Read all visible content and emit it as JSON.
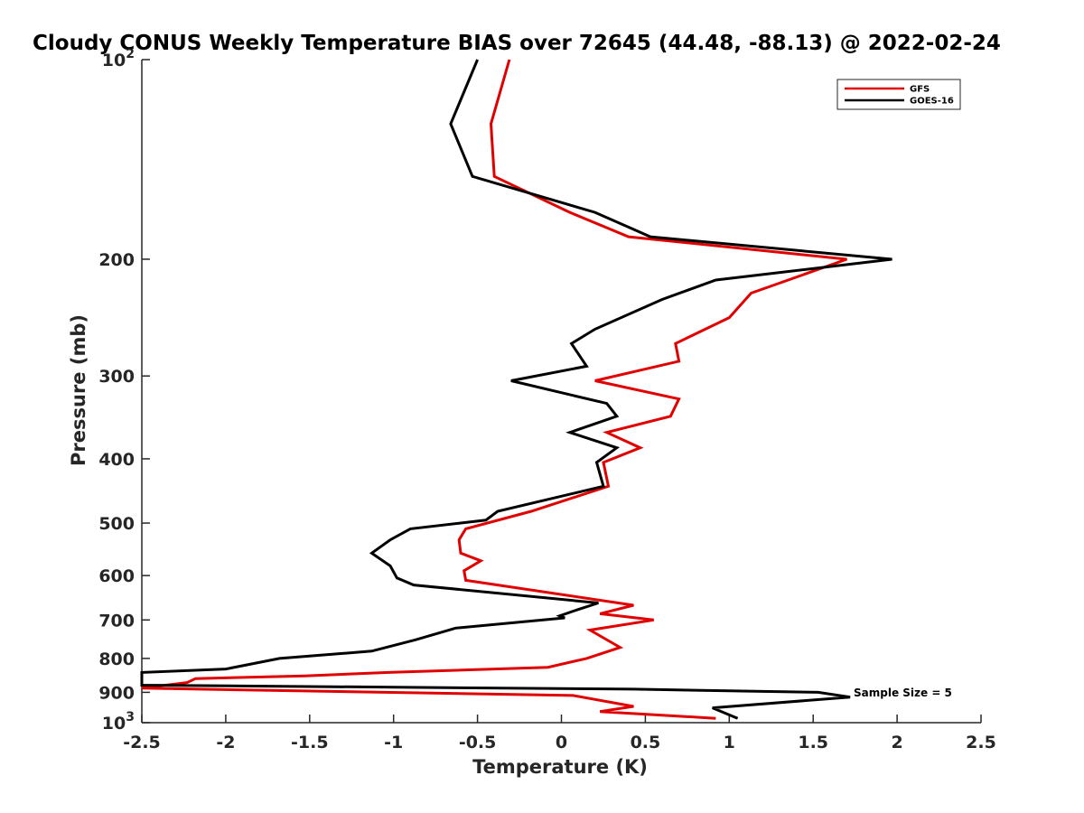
{
  "chart_data": {
    "type": "line",
    "title": "Cloudy CONUS Weekly Temperature BIAS over 72645 (44.48, -88.13) @ 2022-02-24",
    "xlabel": "Temperature (K)",
    "ylabel": "Pressure (mb)",
    "xlim": [
      -2.5,
      2.5
    ],
    "ylim": [
      100,
      1000
    ],
    "y_scale": "log",
    "y_reversed": true,
    "grid": false,
    "legend_position": "top-right",
    "x_ticks": [
      -2.5,
      -2,
      -1.5,
      -1,
      -0.5,
      0,
      0.5,
      1,
      1.5,
      2,
      2.5
    ],
    "x_tick_labels": [
      "-2.5",
      "-2",
      "-1.5",
      "-1",
      "-0.5",
      "0",
      "0.5",
      "1",
      "1.5",
      "2",
      "2.5"
    ],
    "y_ticks": [
      {
        "value": 100,
        "base": "10",
        "exp": "2"
      },
      {
        "value": 200,
        "label": "200"
      },
      {
        "value": 300,
        "label": "300"
      },
      {
        "value": 400,
        "label": "400"
      },
      {
        "value": 500,
        "label": "500"
      },
      {
        "value": 600,
        "label": "600"
      },
      {
        "value": 700,
        "label": "700"
      },
      {
        "value": 800,
        "label": "800"
      },
      {
        "value": 900,
        "label": "900"
      },
      {
        "value": 1000,
        "base": "10",
        "exp": "3"
      }
    ],
    "annotation": "Sample Size = 5",
    "series": [
      {
        "name": "GFS",
        "color": "#e00000",
        "points": [
          [
            -0.31,
            100
          ],
          [
            -0.42,
            125
          ],
          [
            -0.4,
            150
          ],
          [
            0.05,
            170
          ],
          [
            0.4,
            185
          ],
          [
            1.7,
            200
          ],
          [
            1.13,
            225
          ],
          [
            1,
            245
          ],
          [
            0.68,
            268
          ],
          [
            0.7,
            285
          ],
          [
            0.2,
            305
          ],
          [
            0.7,
            325
          ],
          [
            0.65,
            345
          ],
          [
            0.27,
            365
          ],
          [
            0.47,
            385
          ],
          [
            0.25,
            405
          ],
          [
            0.28,
            440
          ],
          [
            -0.18,
            480
          ],
          [
            -0.57,
            510
          ],
          [
            -0.61,
            530
          ],
          [
            -0.6,
            555
          ],
          [
            -0.48,
            570
          ],
          [
            -0.58,
            590
          ],
          [
            -0.57,
            610
          ],
          [
            0.43,
            665
          ],
          [
            0.23,
            685
          ],
          [
            0.55,
            700
          ],
          [
            0.17,
            725
          ],
          [
            0.35,
            770
          ],
          [
            0.15,
            800
          ],
          [
            -0.08,
            825
          ],
          [
            -1.03,
            840
          ],
          [
            -1.53,
            850
          ],
          [
            -2.18,
            858
          ],
          [
            -2.23,
            870
          ],
          [
            -2.5,
            887
          ],
          [
            0.07,
            910
          ],
          [
            0.43,
            945
          ],
          [
            0.23,
            962
          ],
          [
            0.92,
            985
          ]
        ]
      },
      {
        "name": "GOES-16",
        "color": "#000000",
        "points": [
          [
            -0.5,
            100
          ],
          [
            -0.66,
            125
          ],
          [
            -0.53,
            150
          ],
          [
            0.2,
            170
          ],
          [
            0.53,
            185
          ],
          [
            1.97,
            200
          ],
          [
            0.92,
            215
          ],
          [
            0.6,
            230
          ],
          [
            0.2,
            255
          ],
          [
            0.06,
            268
          ],
          [
            0.15,
            290
          ],
          [
            -0.3,
            305
          ],
          [
            0.27,
            330
          ],
          [
            0.33,
            345
          ],
          [
            0.05,
            365
          ],
          [
            0.33,
            385
          ],
          [
            0.21,
            405
          ],
          [
            0.25,
            440
          ],
          [
            -0.38,
            480
          ],
          [
            -0.45,
            495
          ],
          [
            -0.9,
            510
          ],
          [
            -1.02,
            530
          ],
          [
            -1.13,
            555
          ],
          [
            -1.02,
            580
          ],
          [
            -0.98,
            605
          ],
          [
            -0.88,
            620
          ],
          [
            0.22,
            660
          ],
          [
            0.1,
            675
          ],
          [
            -0.01,
            690
          ],
          [
            0.02,
            695
          ],
          [
            -0.63,
            720
          ],
          [
            -0.87,
            750
          ],
          [
            -1.13,
            780
          ],
          [
            -1.68,
            800
          ],
          [
            -2,
            830
          ],
          [
            -2.5,
            840
          ],
          [
            -2.5,
            878
          ],
          [
            0.43,
            890
          ],
          [
            1.53,
            900
          ],
          [
            1.72,
            915
          ],
          [
            0.9,
            950
          ],
          [
            1.05,
            985
          ]
        ]
      }
    ]
  }
}
